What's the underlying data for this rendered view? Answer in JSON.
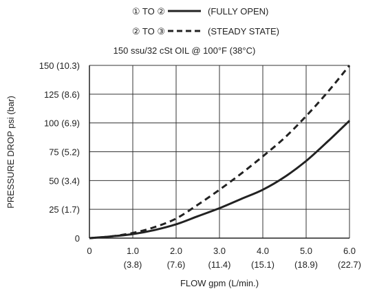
{
  "chart_data": {
    "type": "line",
    "legend": [
      {
        "from_marker": "①",
        "to_word": "TO",
        "to_marker": "②",
        "style": "solid",
        "label": "(FULLY OPEN)"
      },
      {
        "from_marker": "②",
        "to_word": "TO",
        "to_marker": "③",
        "style": "dashed",
        "label": "(STEADY STATE)"
      }
    ],
    "subtitle": "150 ssu/32 cSt OIL @ 100°F (38°C)",
    "xlabel": "FLOW gpm (L/min.)",
    "ylabel": "PRESSURE DROP psi (bar)",
    "xlim": [
      0,
      6
    ],
    "ylim": [
      0,
      150
    ],
    "grid": true,
    "x_ticks": [
      {
        "value": 0,
        "label": "0",
        "sublabel": ""
      },
      {
        "value": 1,
        "label": "1.0",
        "sublabel": "(3.8)"
      },
      {
        "value": 2,
        "label": "2.0",
        "sublabel": "(7.6)"
      },
      {
        "value": 3,
        "label": "3.0",
        "sublabel": "(11.4)"
      },
      {
        "value": 4,
        "label": "4.0",
        "sublabel": "(15.1)"
      },
      {
        "value": 5,
        "label": "5.0",
        "sublabel": "(18.9)"
      },
      {
        "value": 6,
        "label": "6.0",
        "sublabel": "(22.7)"
      }
    ],
    "y_ticks": [
      {
        "value": 0,
        "label": "0"
      },
      {
        "value": 25,
        "label": "25 (1.7)"
      },
      {
        "value": 50,
        "label": "50 (3.4)"
      },
      {
        "value": 75,
        "label": "75 (5.2)"
      },
      {
        "value": 100,
        "label": "100 (6.9)"
      },
      {
        "value": 125,
        "label": "125 (8.6)"
      },
      {
        "value": 150,
        "label": "150 (10.3)"
      }
    ],
    "series": [
      {
        "style": "solid",
        "color": "#222222",
        "x": [
          0,
          0.5,
          1.0,
          1.5,
          2.0,
          2.5,
          3.0,
          3.5,
          4.0,
          4.5,
          5.0,
          5.5,
          6.0
        ],
        "y": [
          0,
          1.5,
          3.5,
          7,
          12,
          19,
          26,
          34,
          42,
          53,
          67,
          84,
          102
        ]
      },
      {
        "style": "dashed",
        "color": "#222222",
        "x": [
          0,
          0.5,
          1.0,
          1.5,
          2.0,
          2.5,
          3.0,
          3.5,
          4.0,
          4.5,
          5.0,
          5.5,
          6.0
        ],
        "y": [
          0,
          1.5,
          4.5,
          9.5,
          17,
          29,
          42,
          56,
          71,
          87,
          106,
          127,
          150
        ]
      }
    ]
  }
}
